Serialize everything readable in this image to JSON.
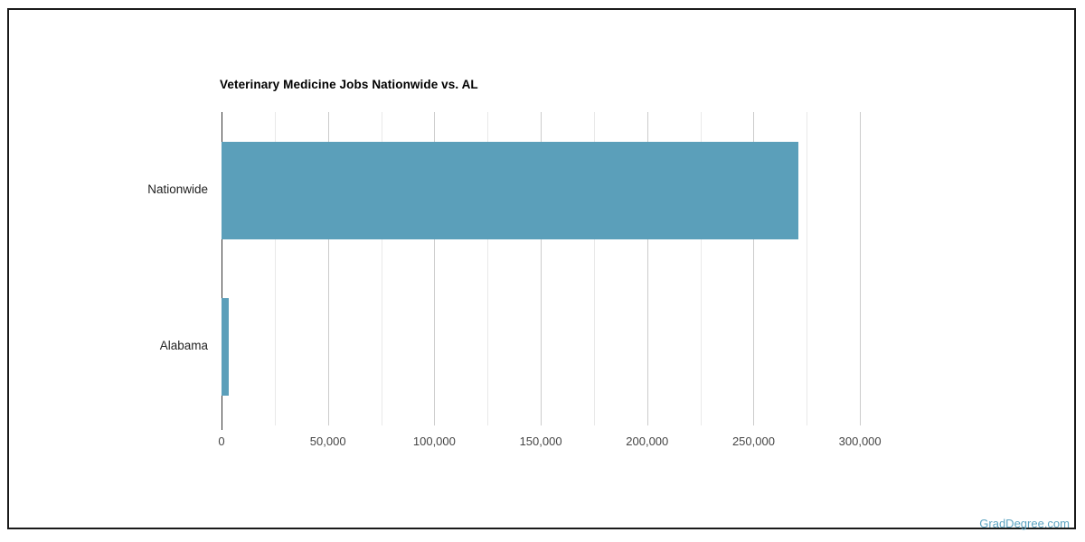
{
  "page": {
    "background": "#ffffff",
    "frame_border_color": "#1a1a1a"
  },
  "watermark": {
    "text": "GradDegree.com",
    "color": "#5da4c2"
  },
  "chart_data": {
    "type": "bar",
    "orientation": "horizontal",
    "title": "Veterinary Medicine Jobs Nationwide vs. AL",
    "categories": [
      "Nationwide",
      "Alabama"
    ],
    "values": [
      271000,
      3270
    ],
    "xlabel": "",
    "ylabel": "",
    "xlim": [
      0,
      325000
    ],
    "x_major_tick_step": 50000,
    "x_minor_grid_step": 25000,
    "x_tick_labels": [
      "0",
      "50,000",
      "100,000",
      "150,000",
      "200,000",
      "250,000",
      "300,000"
    ],
    "grid": true,
    "legend": "none",
    "bar_color": "#5b9fba",
    "axis_line_color": "#333333",
    "major_grid_color": "#cccccc",
    "minor_grid_color": "#e9e9e9",
    "tick_label_color": "#454545",
    "category_label_color": "#222222",
    "title_color": "#000000"
  }
}
